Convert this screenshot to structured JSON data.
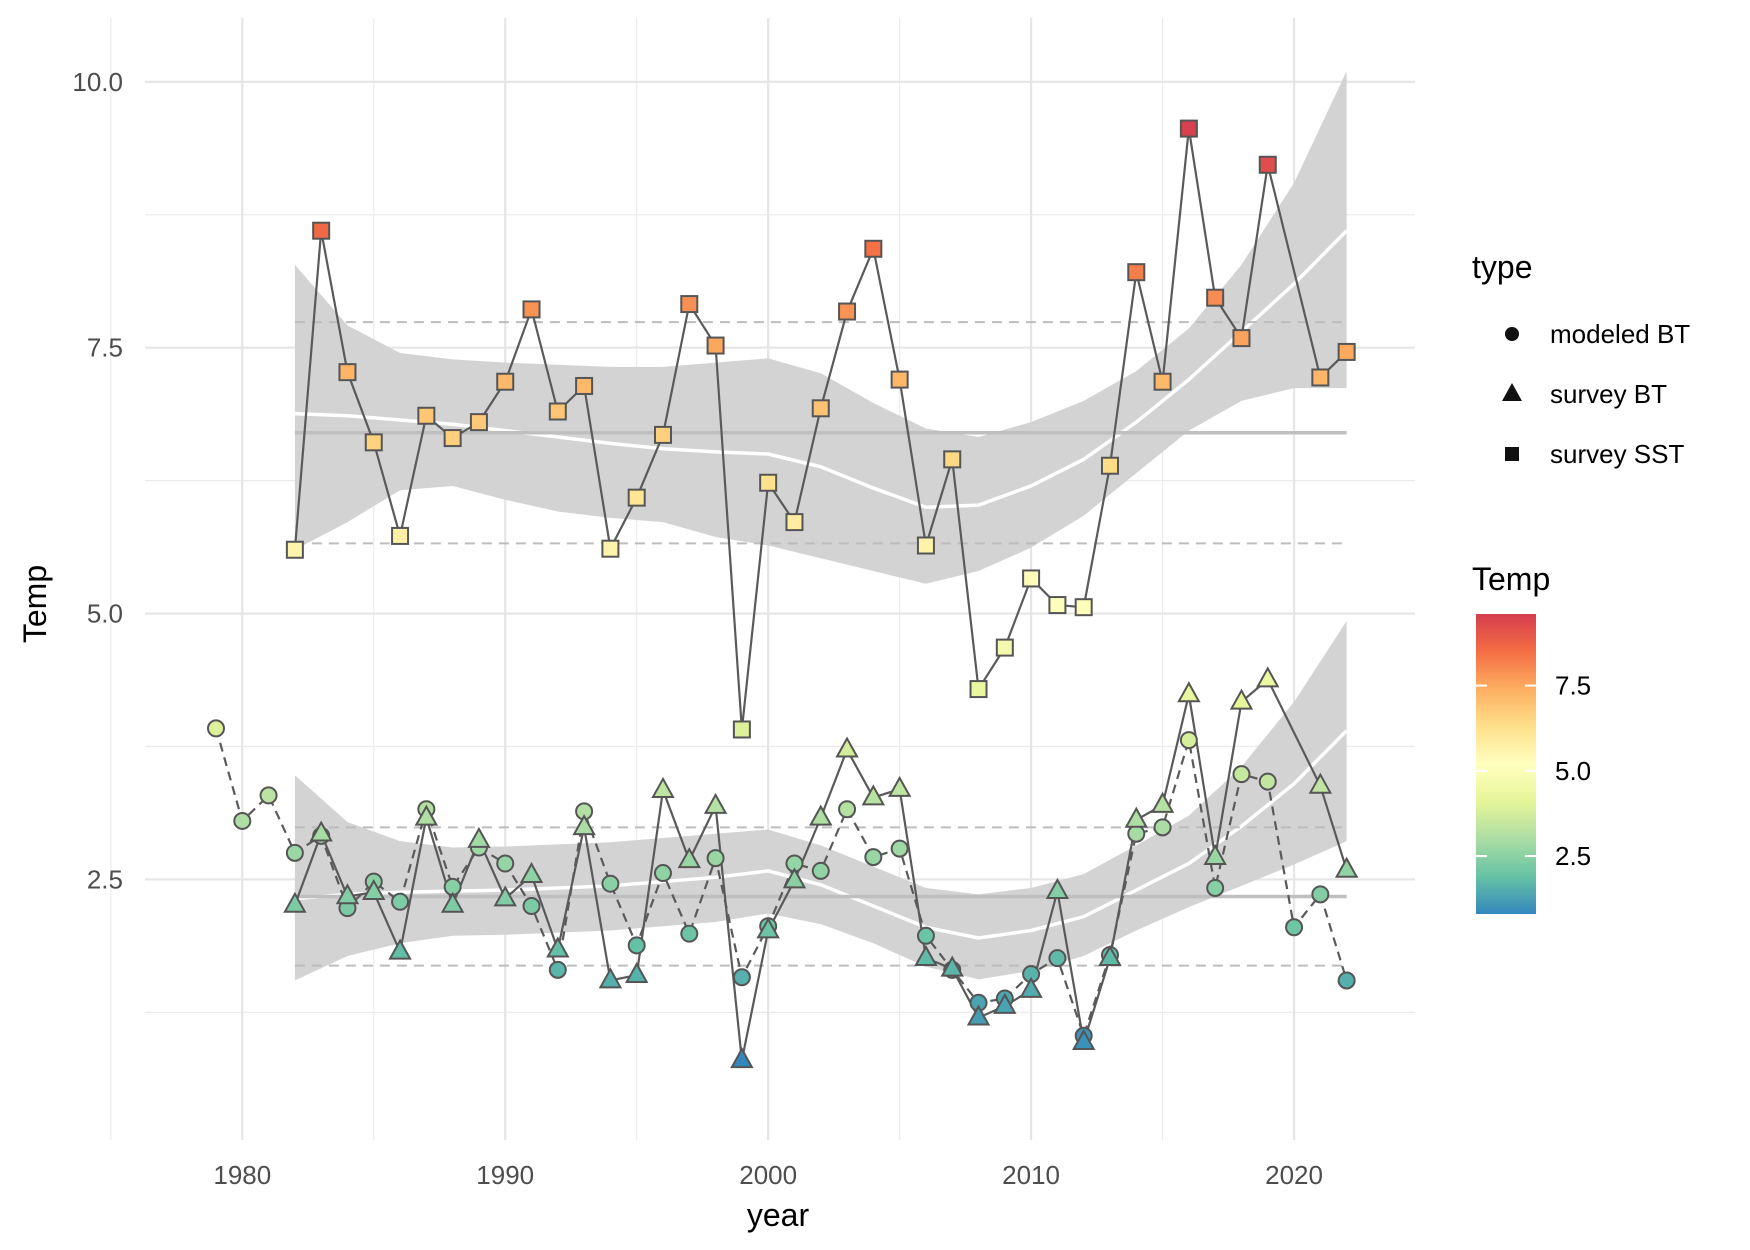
{
  "chart_data": {
    "type": "line",
    "xlabel": "year",
    "ylabel": "Temp",
    "xlim": [
      1976.3,
      2024.6
    ],
    "ylim": [
      0.05,
      10.6
    ],
    "x_ticks": [
      1980,
      1990,
      2000,
      2010,
      2020
    ],
    "x_tick_labels": [
      "1980",
      "1990",
      "2000",
      "2010",
      "2020"
    ],
    "y_ticks": [
      2.5,
      5.0,
      7.5,
      10.0
    ],
    "y_tick_labels": [
      "2.5",
      "5.0",
      "7.5",
      "10.0"
    ],
    "grid": true,
    "legend_position": "right",
    "legend_type": {
      "title": "type",
      "entries": [
        {
          "label": "modeled BT",
          "shape": "circle"
        },
        {
          "label": "survey BT",
          "shape": "triangle"
        },
        {
          "label": "survey SST",
          "shape": "square"
        }
      ]
    },
    "legend_color": {
      "title": "Temp",
      "ticks": [
        2.5,
        5.0,
        7.5
      ],
      "tick_labels": [
        "2.5",
        "5.0",
        "7.5"
      ],
      "range": [
        0.8,
        9.6
      ],
      "palette": [
        "#3288BD",
        "#66C2A5",
        "#ABDDA4",
        "#E6F598",
        "#FFFFBF",
        "#FEE08B",
        "#FDAE61",
        "#F46D43",
        "#D53E4F"
      ]
    },
    "series": [
      {
        "name": "modeled BT",
        "shape": "circle",
        "line": "dashed",
        "x": [
          1979,
          1980,
          1981,
          1982,
          1983,
          1984,
          1985,
          1986,
          1987,
          1988,
          1989,
          1990,
          1991,
          1992,
          1993,
          1994,
          1995,
          1996,
          1997,
          1998,
          1999,
          2000,
          2001,
          2002,
          2003,
          2004,
          2005,
          2006,
          2007,
          2008,
          2009,
          2010,
          2011,
          2012,
          2013,
          2014,
          2015,
          2016,
          2017,
          2018,
          2019,
          2020,
          2021,
          2022
        ],
        "values": [
          3.92,
          3.05,
          3.29,
          2.75,
          2.91,
          2.23,
          2.48,
          2.29,
          3.16,
          2.43,
          2.8,
          2.65,
          2.25,
          1.65,
          3.14,
          2.46,
          1.88,
          2.56,
          1.99,
          2.7,
          1.58,
          2.06,
          2.65,
          2.58,
          3.16,
          2.71,
          2.79,
          1.97,
          1.65,
          1.34,
          1.38,
          1.61,
          1.76,
          1.03,
          1.79,
          2.93,
          2.99,
          3.81,
          2.42,
          3.49,
          3.42,
          2.05,
          2.36,
          1.55
        ]
      },
      {
        "name": "survey BT",
        "shape": "triangle",
        "line": "solid",
        "x": [
          1982,
          1983,
          1984,
          1985,
          1986,
          1987,
          1988,
          1989,
          1990,
          1991,
          1992,
          1993,
          1994,
          1995,
          1996,
          1997,
          1998,
          1999,
          2000,
          2001,
          2002,
          2003,
          2004,
          2005,
          2006,
          2007,
          2008,
          2009,
          2010,
          2011,
          2012,
          2013,
          2014,
          2015,
          2016,
          2017,
          2018,
          2019,
          2021,
          2022
        ],
        "values": [
          2.26,
          2.93,
          2.34,
          2.38,
          1.82,
          3.08,
          2.26,
          2.87,
          2.32,
          2.54,
          1.84,
          2.99,
          1.55,
          1.6,
          3.34,
          2.68,
          3.19,
          0.8,
          2.02,
          2.49,
          3.08,
          3.72,
          3.27,
          3.35,
          1.76,
          1.66,
          1.2,
          1.31,
          1.46,
          2.39,
          0.97,
          1.76,
          3.06,
          3.2,
          4.24,
          2.71,
          4.17,
          4.38,
          3.38,
          2.59
        ]
      },
      {
        "name": "survey SST",
        "shape": "square",
        "line": "solid",
        "x": [
          1982,
          1983,
          1984,
          1985,
          1986,
          1987,
          1988,
          1989,
          1990,
          1991,
          1992,
          1993,
          1994,
          1995,
          1996,
          1997,
          1998,
          1999,
          2000,
          2001,
          2002,
          2003,
          2004,
          2005,
          2006,
          2007,
          2008,
          2009,
          2010,
          2011,
          2012,
          2013,
          2014,
          2015,
          2016,
          2017,
          2018,
          2019,
          2021,
          2022
        ],
        "values": [
          5.6,
          8.6,
          7.27,
          6.61,
          5.73,
          6.86,
          6.65,
          6.8,
          7.18,
          7.86,
          6.9,
          7.14,
          5.61,
          6.09,
          6.68,
          7.91,
          7.52,
          3.91,
          6.23,
          5.86,
          6.93,
          7.84,
          8.43,
          7.2,
          5.64,
          6.45,
          4.29,
          4.68,
          5.33,
          5.08,
          5.06,
          6.39,
          8.21,
          7.18,
          9.56,
          7.97,
          7.59,
          9.22,
          7.22,
          7.46
        ]
      }
    ],
    "reference_lines": [
      {
        "group": "survey SST",
        "mean": 6.7,
        "lower": 5.66,
        "upper": 7.74
      },
      {
        "group": "survey BT",
        "mean": 2.34,
        "lower": 1.69,
        "upper": 2.99
      }
    ],
    "smooth_bands": [
      {
        "group": "survey SST",
        "x": [
          1982,
          1984,
          1986,
          1988,
          1990,
          1992,
          1994,
          1996,
          1998,
          2000,
          2002,
          2004,
          2006,
          2008,
          2010,
          2012,
          2014,
          2016,
          2018,
          2020,
          2022
        ],
        "fit": [
          6.88,
          6.86,
          6.82,
          6.78,
          6.72,
          6.66,
          6.6,
          6.55,
          6.52,
          6.5,
          6.38,
          6.18,
          6.0,
          6.02,
          6.2,
          6.45,
          6.8,
          7.2,
          7.65,
          8.1,
          8.6
        ],
        "lower": [
          5.6,
          5.86,
          6.16,
          6.2,
          6.07,
          5.96,
          5.9,
          5.86,
          5.72,
          5.64,
          5.52,
          5.4,
          5.28,
          5.4,
          5.62,
          5.92,
          6.32,
          6.72,
          7.0,
          7.12,
          7.12
        ],
        "upper": [
          8.28,
          7.71,
          7.45,
          7.39,
          7.36,
          7.34,
          7.32,
          7.32,
          7.36,
          7.4,
          7.26,
          6.98,
          6.74,
          6.66,
          6.8,
          7.0,
          7.28,
          7.68,
          8.28,
          9.05,
          10.1
        ]
      },
      {
        "group": "survey BT",
        "x": [
          1982,
          1984,
          1986,
          1988,
          1990,
          1992,
          1994,
          1996,
          1998,
          2000,
          2002,
          2004,
          2006,
          2008,
          2010,
          2012,
          2014,
          2016,
          2018,
          2020,
          2022
        ],
        "fit": [
          2.32,
          2.36,
          2.38,
          2.39,
          2.4,
          2.42,
          2.44,
          2.48,
          2.52,
          2.58,
          2.45,
          2.25,
          2.05,
          1.95,
          2.02,
          2.15,
          2.4,
          2.65,
          3.0,
          3.4,
          3.9
        ],
        "lower": [
          1.55,
          1.78,
          1.9,
          1.97,
          1.98,
          2.0,
          2.02,
          2.06,
          2.1,
          2.18,
          2.08,
          1.9,
          1.68,
          1.56,
          1.64,
          1.78,
          2.02,
          2.24,
          2.44,
          2.64,
          2.86
        ],
        "upper": [
          3.48,
          3.04,
          2.86,
          2.8,
          2.81,
          2.83,
          2.85,
          2.89,
          2.93,
          2.97,
          2.82,
          2.62,
          2.42,
          2.36,
          2.42,
          2.55,
          2.82,
          3.1,
          3.56,
          4.17,
          4.93
        ]
      }
    ]
  }
}
